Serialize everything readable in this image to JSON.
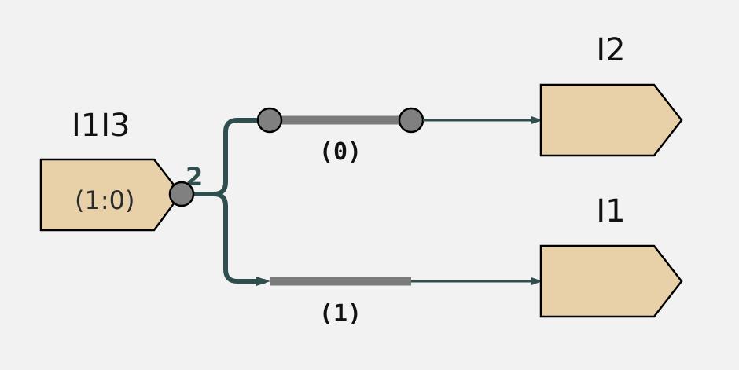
{
  "diagram": {
    "source_pin": {
      "name": "I1I3",
      "range": "(1:0)",
      "bus_width": "2"
    },
    "split_branches": [
      {
        "index": "(0)"
      },
      {
        "index": "(1)"
      }
    ],
    "target_pins": [
      {
        "name": "I2"
      },
      {
        "name": "I1"
      }
    ],
    "colors": {
      "background": "#f2f2f2",
      "pin_fill": "#e8d1a8",
      "pin_stroke": "#000000",
      "wire": "#2f4f4f",
      "bus_segment": "#7a7a7a",
      "connector_dot": "#808080"
    }
  }
}
